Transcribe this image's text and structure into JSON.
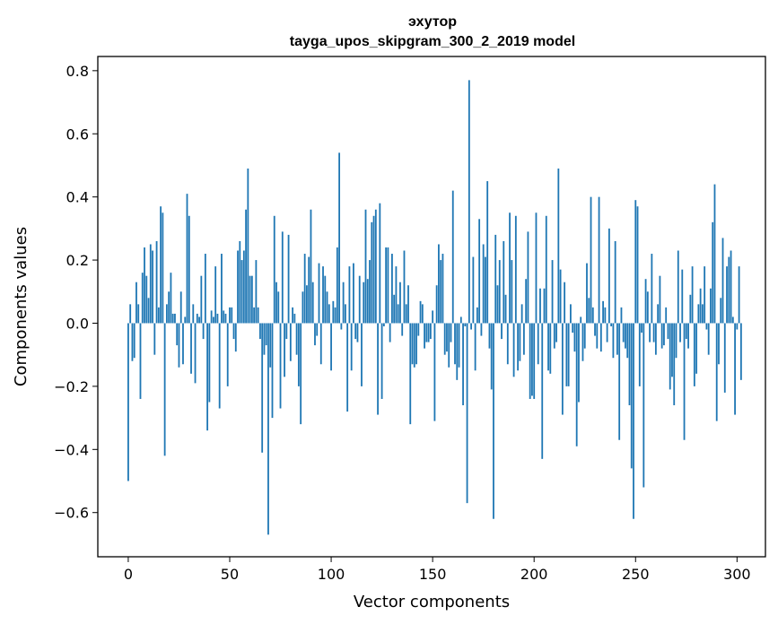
{
  "chart_data": {
    "type": "bar",
    "title_line1": "эхутор",
    "title_line2": "tayga_upos_skipgram_300_2_2019 model",
    "xlabel": "Vector components",
    "ylabel": "Components values",
    "xlim": [
      -15,
      314
    ],
    "ylim": [
      -0.74,
      0.845
    ],
    "xticks": [
      0,
      50,
      100,
      150,
      200,
      250,
      300
    ],
    "xtick_labels": [
      "0",
      "50",
      "100",
      "150",
      "200",
      "250",
      "300"
    ],
    "yticks": [
      -0.6,
      -0.4,
      -0.2,
      0.0,
      0.2,
      0.4,
      0.6,
      0.8
    ],
    "ytick_labels": [
      "−0.6",
      "−0.4",
      "−0.2",
      "0.0",
      "0.2",
      "0.4",
      "0.6",
      "0.8"
    ],
    "bar_color": "#1f77b4",
    "grid": false,
    "values": [
      -0.5,
      0.06,
      -0.12,
      -0.11,
      0.13,
      0.06,
      -0.24,
      0.16,
      0.24,
      0.15,
      0.08,
      0.25,
      0.23,
      -0.1,
      0.26,
      0.05,
      0.37,
      0.35,
      -0.42,
      0.06,
      0.1,
      0.16,
      0.03,
      0.03,
      -0.07,
      -0.14,
      0.1,
      -0.13,
      0.02,
      0.41,
      0.34,
      -0.16,
      0.06,
      -0.19,
      0.03,
      0.02,
      0.15,
      -0.05,
      0.22,
      -0.34,
      -0.25,
      0.04,
      0.02,
      0.18,
      0.03,
      -0.27,
      0.22,
      0.04,
      0.03,
      -0.2,
      0.05,
      0.05,
      -0.05,
      -0.09,
      0.23,
      0.26,
      0.2,
      0.23,
      0.36,
      0.49,
      0.15,
      0.15,
      0.05,
      0.2,
      0.05,
      -0.05,
      -0.41,
      -0.1,
      -0.07,
      -0.67,
      -0.14,
      -0.3,
      0.34,
      0.13,
      0.1,
      -0.27,
      0.29,
      -0.17,
      -0.05,
      0.28,
      -0.12,
      0.05,
      0.03,
      -0.1,
      -0.2,
      -0.32,
      0.1,
      0.22,
      0.12,
      0.21,
      0.36,
      0.13,
      -0.07,
      -0.04,
      0.19,
      -0.13,
      0.18,
      0.15,
      0.1,
      0.06,
      -0.15,
      0.07,
      0.05,
      0.24,
      0.54,
      -0.02,
      0.13,
      0.06,
      -0.28,
      0.18,
      -0.15,
      0.19,
      -0.05,
      -0.06,
      0.15,
      -0.2,
      0.13,
      0.36,
      0.14,
      0.2,
      0.32,
      0.34,
      0.36,
      -0.29,
      0.38,
      -0.24,
      -0.01,
      0.24,
      0.24,
      -0.06,
      0.22,
      0.09,
      0.18,
      0.06,
      0.13,
      -0.04,
      0.23,
      0.06,
      0.12,
      -0.32,
      -0.13,
      -0.14,
      -0.13,
      -0.04,
      0.07,
      0.06,
      -0.08,
      -0.06,
      -0.06,
      -0.05,
      0.04,
      -0.31,
      0.12,
      0.25,
      0.2,
      0.22,
      -0.1,
      -0.09,
      -0.14,
      -0.06,
      0.42,
      -0.13,
      -0.18,
      -0.14,
      0.02,
      -0.26,
      -0.01,
      -0.57,
      0.77,
      -0.02,
      0.21,
      -0.15,
      0.05,
      0.33,
      -0.04,
      0.25,
      0.21,
      0.45,
      -0.08,
      -0.21,
      -0.62,
      0.28,
      0.12,
      0.2,
      -0.05,
      0.26,
      0.09,
      -0.13,
      0.35,
      0.2,
      -0.17,
      0.34,
      -0.15,
      -0.12,
      0.06,
      -0.1,
      0.14,
      0.29,
      -0.24,
      -0.23,
      -0.24,
      0.35,
      -0.13,
      0.11,
      -0.43,
      0.11,
      0.34,
      -0.15,
      -0.16,
      0.2,
      -0.08,
      -0.06,
      0.49,
      0.17,
      -0.29,
      0.13,
      -0.2,
      -0.2,
      0.06,
      -0.03,
      -0.09,
      -0.39,
      -0.25,
      0.02,
      -0.12,
      -0.08,
      0.19,
      0.08,
      0.4,
      0.05,
      -0.04,
      -0.08,
      0.4,
      -0.09,
      0.07,
      0.05,
      -0.06,
      0.3,
      -0.01,
      -0.11,
      0.26,
      -0.1,
      -0.37,
      0.05,
      -0.06,
      -0.08,
      -0.11,
      -0.26,
      -0.46,
      -0.62,
      0.39,
      0.37,
      -0.2,
      -0.03,
      -0.52,
      0.14,
      0.1,
      -0.06,
      0.22,
      -0.06,
      -0.1,
      0.06,
      0.15,
      -0.08,
      -0.07,
      0.05,
      -0.05,
      -0.21,
      -0.17,
      -0.26,
      -0.11,
      0.23,
      -0.06,
      0.17,
      -0.37,
      -0.05,
      -0.08,
      0.09,
      0.18,
      -0.2,
      -0.16,
      0.06,
      0.11,
      0.06,
      0.18,
      -0.02,
      -0.1,
      0.11,
      0.32,
      0.44,
      -0.31,
      -0.13,
      0.08,
      0.27,
      -0.22,
      0.18,
      0.21,
      0.23,
      0.02,
      -0.29,
      -0.02,
      0.18,
      -0.18
    ]
  }
}
